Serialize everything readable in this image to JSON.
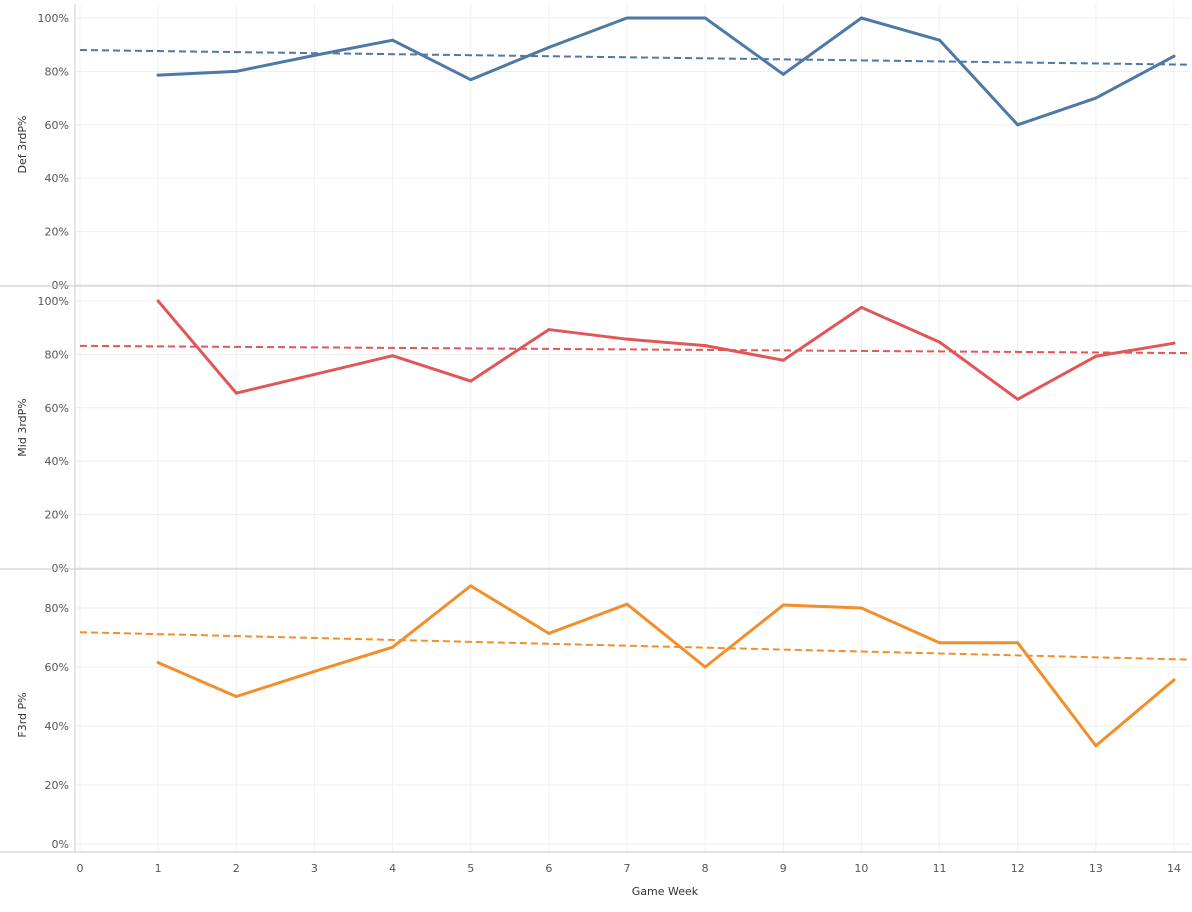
{
  "chart_data": {
    "type": "line",
    "xlabel": "Game Week",
    "x_ticks": [
      0,
      1,
      2,
      3,
      4,
      5,
      6,
      7,
      8,
      9,
      10,
      11,
      12,
      13,
      14
    ],
    "xlim": [
      0,
      14
    ],
    "grid": true,
    "panels": [
      {
        "ylabel": "Def 3rdP%",
        "color": "#4e79a7",
        "ylim": [
          0,
          100
        ],
        "y_ticks": [
          "0%",
          "20%",
          "40%",
          "60%",
          "80%",
          "100%"
        ],
        "x": [
          1,
          2,
          3,
          4,
          5,
          6,
          7,
          8,
          9,
          10,
          11,
          12,
          13,
          14
        ],
        "values": [
          78.6,
          80,
          86,
          91.7,
          76.9,
          89,
          100,
          100,
          78.9,
          100,
          91.7,
          60,
          70,
          85.7
        ],
        "trend": [
          88,
          82.5
        ]
      },
      {
        "ylabel": "Mid 3rdP%",
        "color": "#e15759",
        "ylim": [
          0,
          100
        ],
        "y_ticks": [
          "0%",
          "20%",
          "40%",
          "60%",
          "80%",
          "100%"
        ],
        "x": [
          1,
          2,
          3,
          4,
          5,
          6,
          7,
          8,
          9,
          10,
          11,
          12,
          13,
          14
        ],
        "values": [
          100,
          65.5,
          72.5,
          79.5,
          70,
          89.3,
          85.7,
          83.3,
          77.8,
          97.6,
          84.6,
          63.2,
          79.3,
          84.2
        ],
        "trend": [
          83.2,
          80.5
        ]
      },
      {
        "ylabel": "F3rd P%",
        "color": "#f28e2b",
        "ylim": [
          0,
          90
        ],
        "y_ticks": [
          "0%",
          "20%",
          "40%",
          "60%",
          "80%"
        ],
        "x": [
          1,
          2,
          3,
          4,
          5,
          6,
          7,
          8,
          9,
          10,
          11,
          12,
          13,
          14
        ],
        "values": [
          61.5,
          50,
          58.5,
          66.7,
          87.5,
          71.4,
          81.3,
          60,
          81,
          80,
          68.2,
          68.2,
          33.3,
          55.6
        ],
        "trend": [
          71.8,
          62.5
        ]
      }
    ]
  }
}
